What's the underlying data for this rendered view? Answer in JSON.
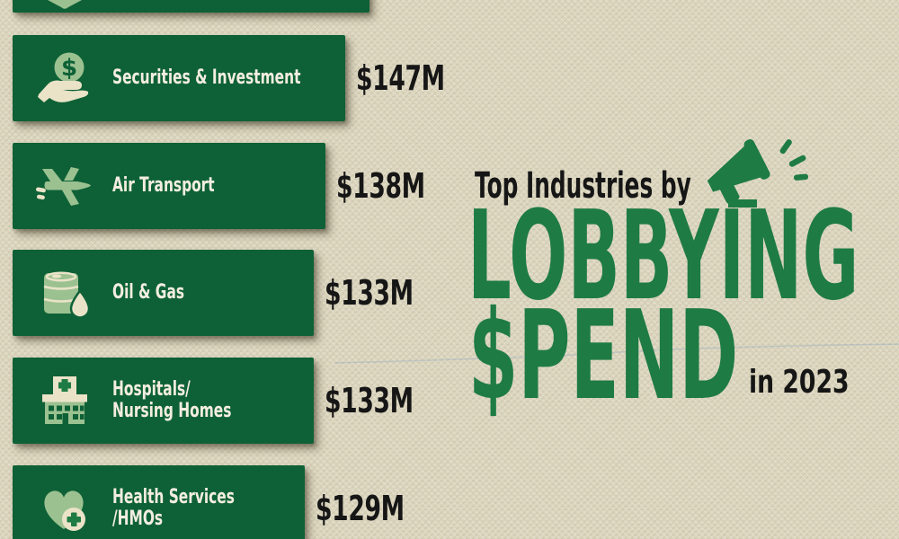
{
  "title": {
    "pre": "Top Industries by",
    "line1": "LOBBYING",
    "line2": "$PEND",
    "suffix": "in 2023",
    "icon": "megaphone-icon"
  },
  "icons": {
    "dollar_sign": "$"
  },
  "bars": [
    {
      "icon": "shield-tip-icon",
      "label_lines": [],
      "value": null,
      "value_label": "",
      "truncated": true
    },
    {
      "icon": "hand-coin-icon",
      "label_lines": [
        "Securities & Investment"
      ],
      "value": 147,
      "value_label": "$147M"
    },
    {
      "icon": "airplane-icon",
      "label_lines": [
        "Air Transport"
      ],
      "value": 138,
      "value_label": "$138M"
    },
    {
      "icon": "oil-barrel-icon",
      "label_lines": [
        "Oil & Gas"
      ],
      "value": 133,
      "value_label": "$133M"
    },
    {
      "icon": "hospital-icon",
      "label_lines": [
        "Hospitals/",
        "Nursing Homes"
      ],
      "value": 133,
      "value_label": "$133M"
    },
    {
      "icon": "heart-cross-icon",
      "label_lines": [
        "Health Services",
        "/HMOs"
      ],
      "value": 129,
      "value_label": "$129M"
    }
  ],
  "colors": {
    "bar_green": "#0E6136",
    "title_green": "#1E7B44",
    "light_green": "#9CC191",
    "cream": "#EAE3C8",
    "background": "#DCD6BE",
    "text_black": "#161616",
    "label_text": "#F3EEDF"
  },
  "chart_data": {
    "type": "bar",
    "orientation": "horizontal",
    "title": "Top Industries by LOBBYING $PEND in 2023",
    "categories": [
      "Securities & Investment",
      "Air Transport",
      "Oil & Gas",
      "Hospitals/Nursing Homes",
      "Health Services/HMOs"
    ],
    "values": [
      147,
      138,
      133,
      133,
      129
    ],
    "value_labels": [
      "$147M",
      "$138M",
      "$133M",
      "$133M",
      "$129M"
    ],
    "unit": "USD millions",
    "legend": "none",
    "grid": false,
    "notes": "One additional wider bar is cropped at the top edge of the image; its label and value are not visible."
  }
}
